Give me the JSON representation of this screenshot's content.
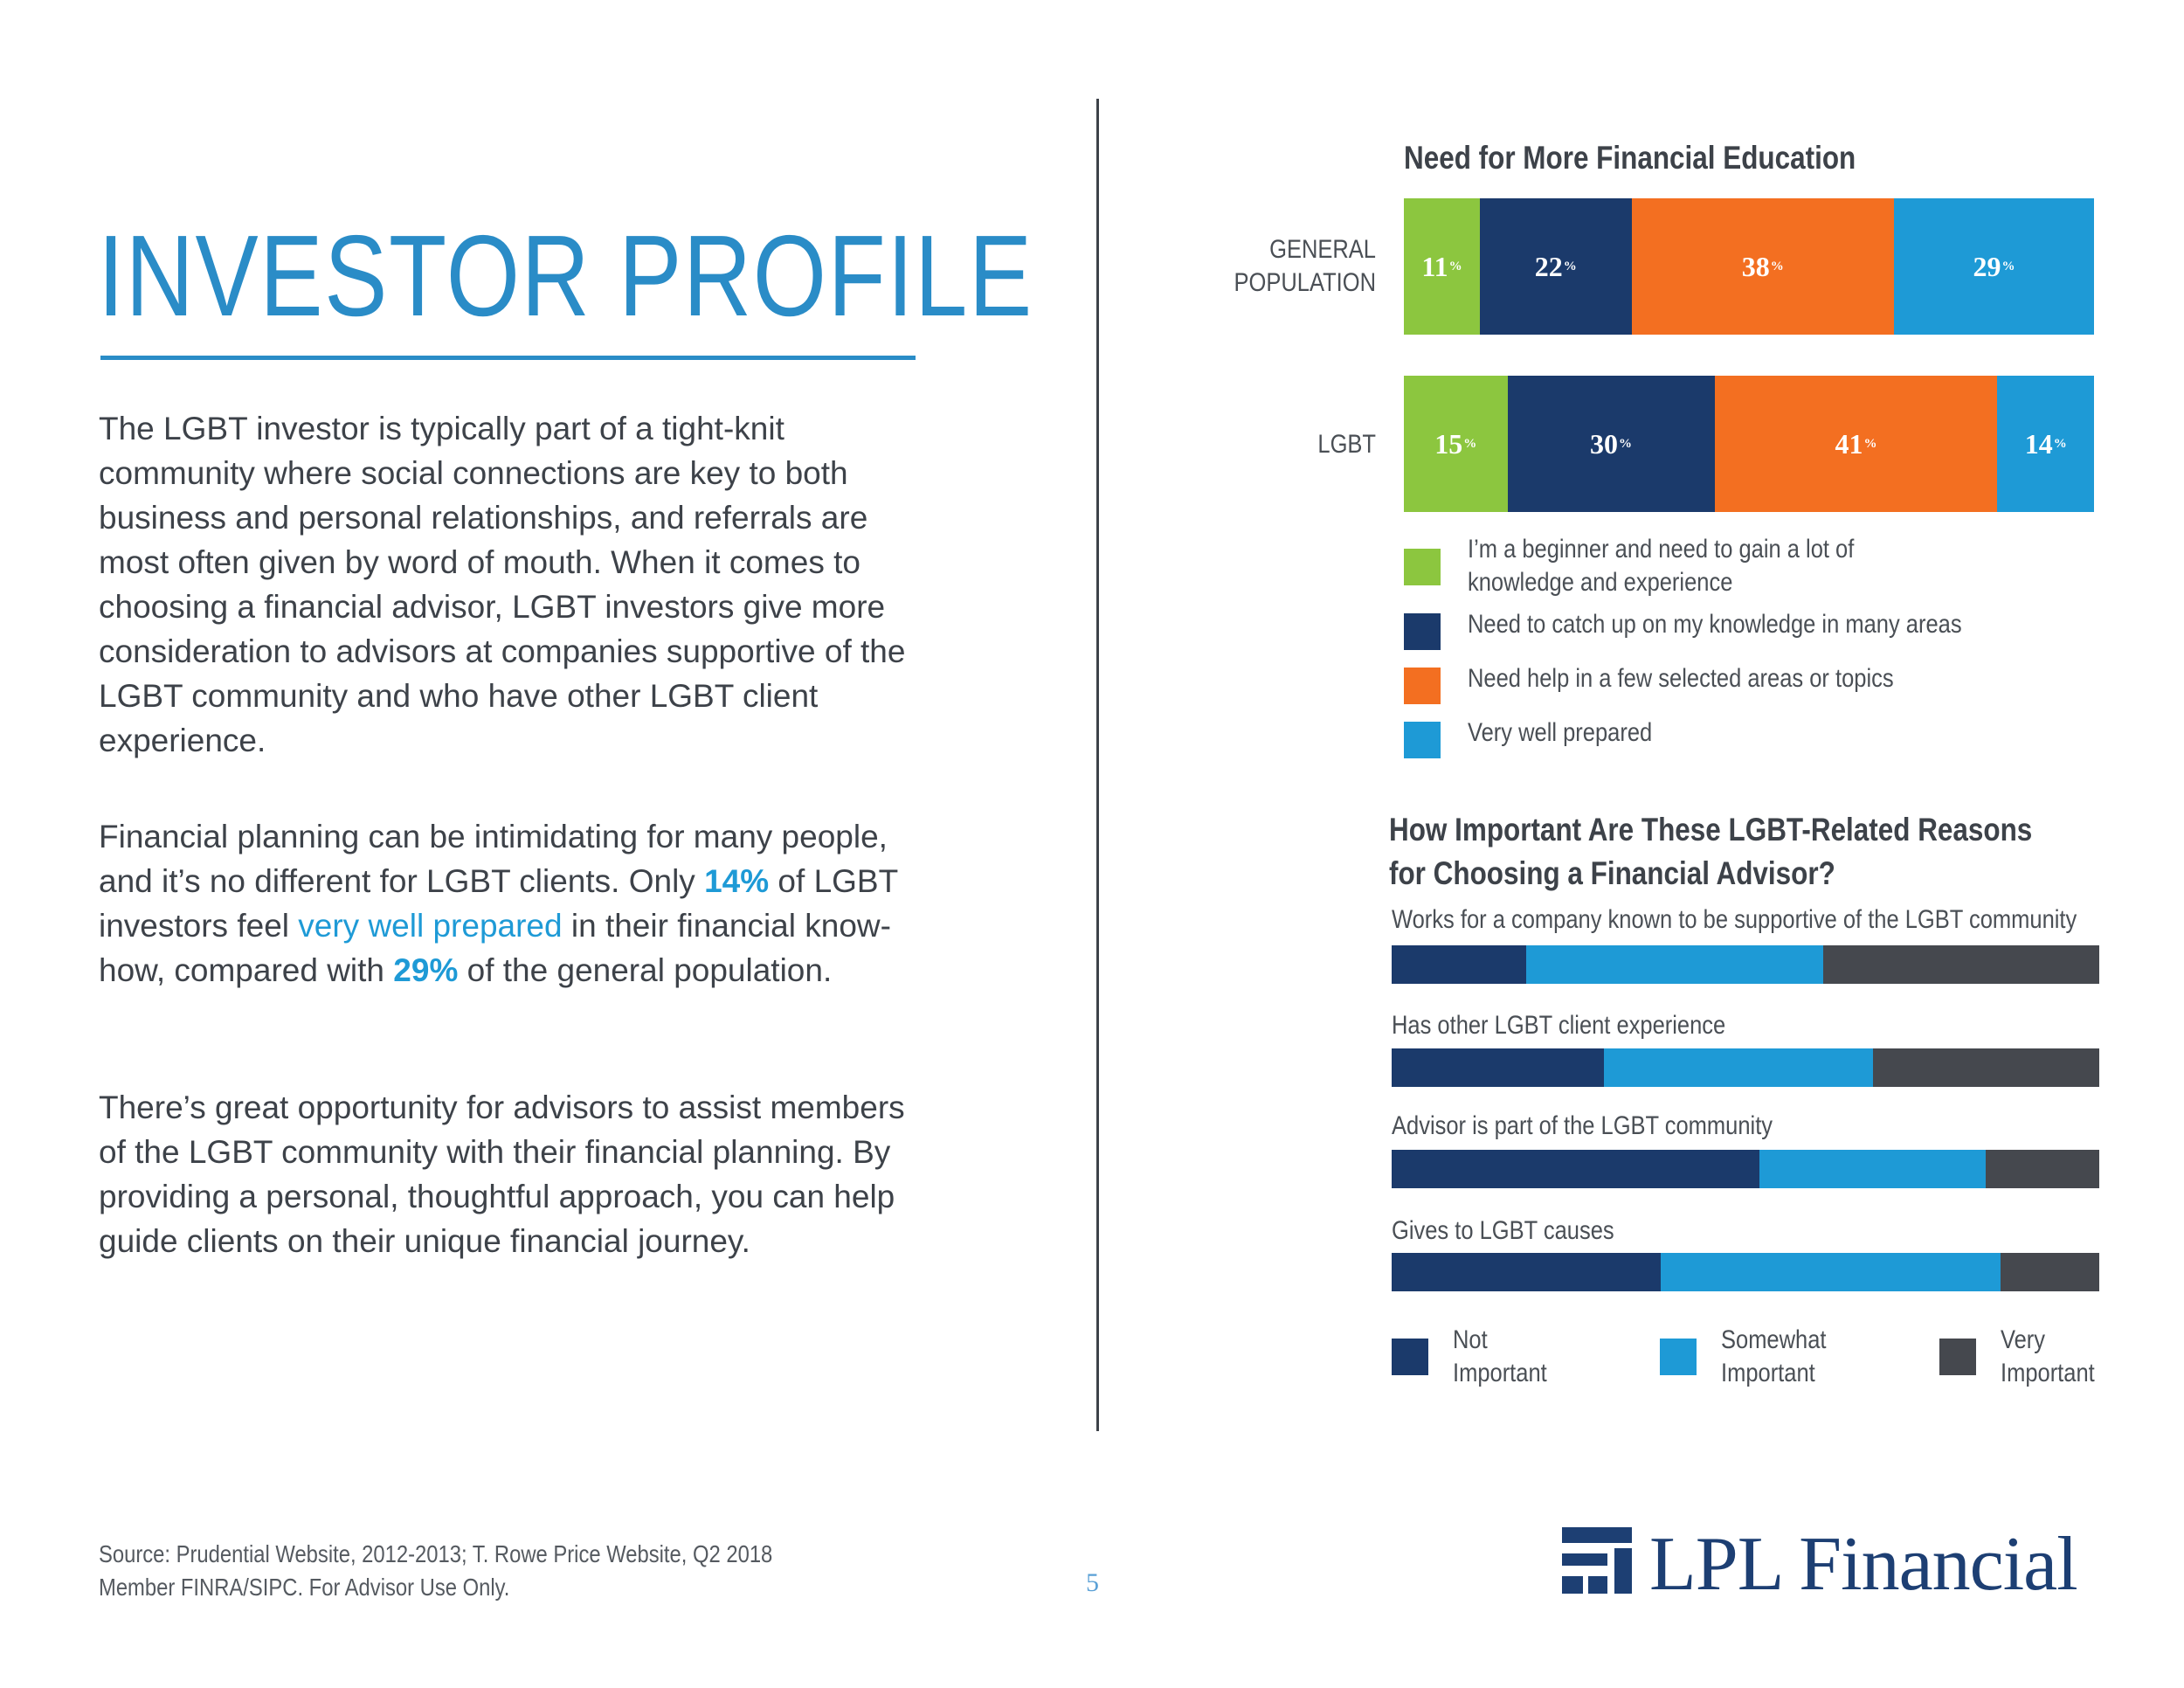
{
  "page": {
    "title": "INVESTOR PROFILE",
    "paragraphs": {
      "p1": "The LGBT investor is typically part of a tight-knit community where social connections are key to both business and personal relationships, and referrals are most often given by word of mouth. When it comes to choosing a financial advisor, LGBT investors give more consideration to advisors at companies supportive of the LGBT community and who have other LGBT client experience.",
      "p2_a": "Financial planning can be intimidating for many people, and it’s no different for LGBT clients. Only ",
      "p2_b": "14%",
      "p2_c": " of LGBT investors feel ",
      "p2_d": "very well prepared",
      "p2_e": " in their financial know-how, compared with ",
      "p2_f": "29%",
      "p2_g": " of the general population.",
      "p3": "There’s great opportunity for advisors to assist members of the LGBT community with their financial planning. By providing a personal, thoughtful approach, you can help guide clients on their unique financial journey."
    },
    "source_line1": "Source: Prudential Website, 2012-2013; T. Rowe Price Website, Q2 2018",
    "source_line2": "Member FINRA/SIPC. For Advisor Use Only.",
    "page_number": "5",
    "logo": "LPL Financial"
  },
  "colors": {
    "green": "#8cc63f",
    "navy": "#1b3a6b",
    "orange": "#f36f21",
    "blue": "#1e9ad6",
    "gray": "#45484e"
  },
  "chart_data": [
    {
      "type": "bar",
      "orientation": "horizontal-stacked",
      "title": "Need for More Financial Education",
      "categories": [
        "GENERAL POPULATION",
        "LGBT"
      ],
      "category_lines": [
        [
          "GENERAL",
          "POPULATION"
        ],
        [
          "LGBT"
        ]
      ],
      "unit": "%",
      "series": [
        {
          "name": "I’m a beginner and need to gain a lot of knowledge and experience",
          "name_lines": [
            "I’m a beginner and need to gain a lot of",
            "knowledge and experience"
          ],
          "color": "#8cc63f",
          "values": [
            11,
            15
          ]
        },
        {
          "name": "Need to catch up on my knowledge in many areas",
          "name_lines": [
            "Need to catch up on my knowledge in many areas"
          ],
          "color": "#1b3a6b",
          "values": [
            22,
            30
          ]
        },
        {
          "name": "Need help in a few selected areas or topics",
          "name_lines": [
            "Need help in a few selected areas or topics"
          ],
          "color": "#f36f21",
          "values": [
            38,
            41
          ]
        },
        {
          "name": "Very well prepared",
          "name_lines": [
            "Very well prepared"
          ],
          "color": "#1e9ad6",
          "values": [
            29,
            14
          ]
        }
      ]
    },
    {
      "type": "bar",
      "orientation": "horizontal-stacked",
      "title_lines": [
        "How Important Are These LGBT-Related Reasons",
        "for Choosing a Financial Advisor?"
      ],
      "categories": [
        "Works for a company known to be supportive of the LGBT community",
        "Has other LGBT client experience",
        "Advisor is part of the LGBT community",
        "Gives to LGBT causes"
      ],
      "unit": "%",
      "series": [
        {
          "name": "Not Important",
          "name_lines": [
            "Not",
            "Important"
          ],
          "color": "#1b3a6b",
          "values": [
            19,
            30,
            52,
            38
          ]
        },
        {
          "name": "Somewhat Important",
          "name_lines": [
            "Somewhat",
            "Important"
          ],
          "color": "#1e9ad6",
          "values": [
            42,
            38,
            32,
            48
          ]
        },
        {
          "name": "Very Important",
          "name_lines": [
            "Very",
            "Important"
          ],
          "color": "#45484e",
          "values": [
            39,
            32,
            16,
            14
          ]
        }
      ]
    }
  ]
}
